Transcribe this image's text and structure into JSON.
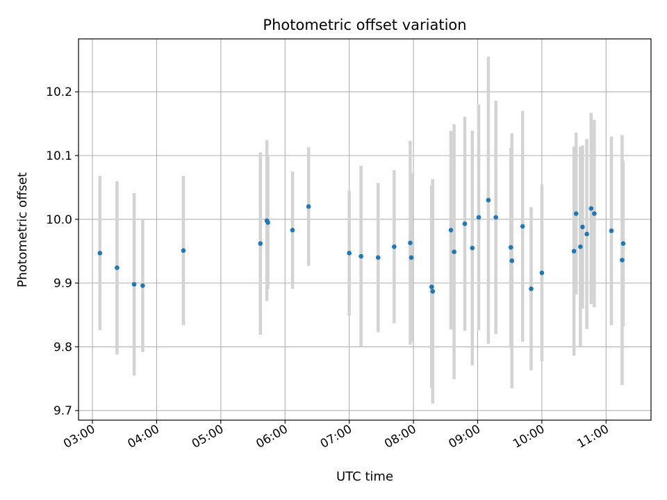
{
  "chart_data": {
    "type": "scatter",
    "title": "Photometric offset variation",
    "xlabel": "UTC time",
    "ylabel": "Photometric offset",
    "x_axis": "time (UTC, hours after midnight)",
    "xlim": [
      "02:47",
      "11:42"
    ],
    "ylim": [
      9.685,
      10.283
    ],
    "xticks": [
      "03:00",
      "04:00",
      "05:00",
      "06:00",
      "07:00",
      "08:00",
      "09:00",
      "10:00",
      "11:00"
    ],
    "yticks": [
      9.7,
      9.8,
      9.9,
      10.0,
      10.1,
      10.2
    ],
    "grid": true,
    "marker_color": "#1f77b4",
    "errorbar_color": "#d3d3d3",
    "points": [
      {
        "t": "03:07",
        "y": 9.947,
        "err": 0.121
      },
      {
        "t": "03:23",
        "y": 9.924,
        "err": 0.136
      },
      {
        "t": "03:39",
        "y": 9.898,
        "err": 0.143
      },
      {
        "t": "03:47",
        "y": 9.896,
        "err": 0.104
      },
      {
        "t": "04:25",
        "y": 9.951,
        "err": 0.117
      },
      {
        "t": "05:37",
        "y": 9.962,
        "err": 0.143
      },
      {
        "t": "05:43",
        "y": 9.998,
        "err": 0.126
      },
      {
        "t": "05:44",
        "y": 9.995,
        "err": 0.104
      },
      {
        "t": "06:07",
        "y": 9.983,
        "err": 0.092
      },
      {
        "t": "06:22",
        "y": 10.02,
        "err": 0.093
      },
      {
        "t": "07:00",
        "y": 9.947,
        "err": 0.098
      },
      {
        "t": "07:11",
        "y": 9.942,
        "err": 0.142
      },
      {
        "t": "07:27",
        "y": 9.94,
        "err": 0.117
      },
      {
        "t": "07:42",
        "y": 9.957,
        "err": 0.12
      },
      {
        "t": "07:57",
        "y": 9.963,
        "err": 0.16
      },
      {
        "t": "07:58",
        "y": 9.94,
        "err": 0.132
      },
      {
        "t": "08:17",
        "y": 9.894,
        "err": 0.159
      },
      {
        "t": "08:18",
        "y": 9.887,
        "err": 0.176
      },
      {
        "t": "08:35",
        "y": 9.983,
        "err": 0.156
      },
      {
        "t": "08:38",
        "y": 9.949,
        "err": 0.2
      },
      {
        "t": "08:48",
        "y": 9.993,
        "err": 0.168
      },
      {
        "t": "08:55",
        "y": 9.955,
        "err": 0.184
      },
      {
        "t": "09:01",
        "y": 10.003,
        "err": 0.177
      },
      {
        "t": "09:10",
        "y": 10.03,
        "err": 0.225
      },
      {
        "t": "09:17",
        "y": 10.003,
        "err": 0.183
      },
      {
        "t": "09:31",
        "y": 9.956,
        "err": 0.156
      },
      {
        "t": "09:32",
        "y": 9.935,
        "err": 0.2
      },
      {
        "t": "09:42",
        "y": 9.989,
        "err": 0.181
      },
      {
        "t": "09:50",
        "y": 9.891,
        "err": 0.128
      },
      {
        "t": "10:00",
        "y": 9.916,
        "err": 0.139
      },
      {
        "t": "10:30",
        "y": 9.95,
        "err": 0.164
      },
      {
        "t": "10:32",
        "y": 10.009,
        "err": 0.127
      },
      {
        "t": "10:36",
        "y": 9.957,
        "err": 0.157
      },
      {
        "t": "10:38",
        "y": 9.988,
        "err": 0.128
      },
      {
        "t": "10:42",
        "y": 9.977,
        "err": 0.149
      },
      {
        "t": "10:46",
        "y": 10.017,
        "err": 0.15
      },
      {
        "t": "10:49",
        "y": 10.009,
        "err": 0.147
      },
      {
        "t": "11:05",
        "y": 9.982,
        "err": 0.148
      },
      {
        "t": "11:15",
        "y": 9.936,
        "err": 0.196
      },
      {
        "t": "11:16",
        "y": 9.962,
        "err": 0.13
      }
    ]
  }
}
